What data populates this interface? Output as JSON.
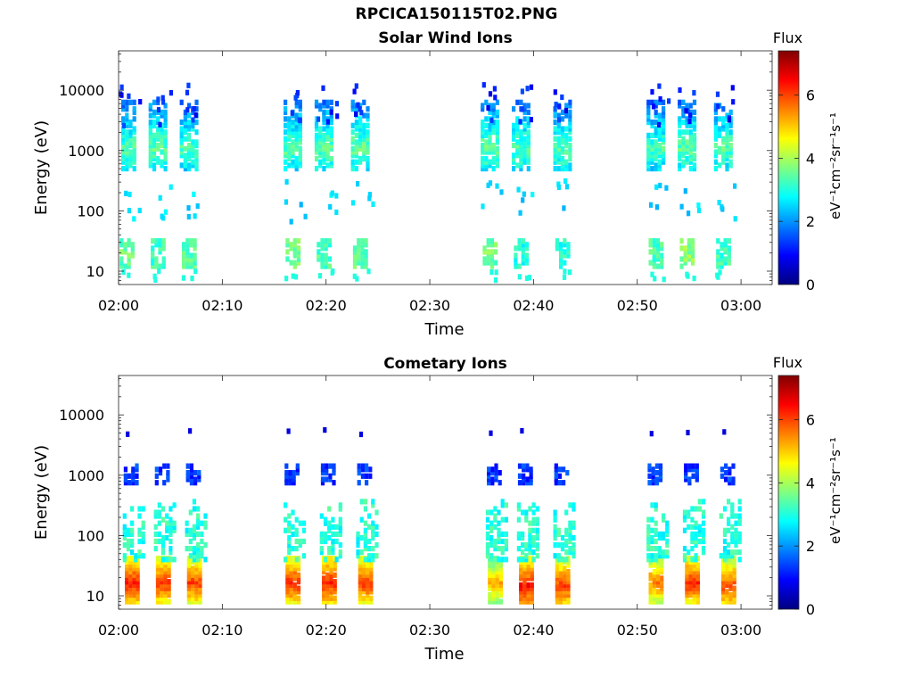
{
  "figure_title": "RPCICA150115T02.PNG",
  "chart_data": [
    {
      "type": "heatmap",
      "title": "Solar Wind Ions",
      "xlabel": "Time",
      "ylabel": "Energy (eV)",
      "xticks": [
        "02:00",
        "02:10",
        "02:20",
        "02:30",
        "02:40",
        "02:50",
        "03:00"
      ],
      "xlim_minutes": [
        0,
        63
      ],
      "yscale": "log",
      "yticks": [
        10,
        100,
        1000,
        10000
      ],
      "ylim": [
        6,
        45000
      ],
      "colorbar": {
        "label": "Flux",
        "unit_label": "eV⁻¹cm⁻²sr⁻¹s⁻¹",
        "ticks": [
          0,
          2,
          4,
          6
        ],
        "range": [
          0,
          7.4
        ],
        "colormap": "jet"
      },
      "bursts": [
        {
          "minute": 0.5,
          "peak_energy_ev": 1100,
          "peak_flux": 3.4,
          "low_energy_ev": 20,
          "low_flux": 3.5
        },
        {
          "minute": 3.5,
          "peak_energy_ev": 1100,
          "peak_flux": 3.5,
          "low_energy_ev": 20,
          "low_flux": 3.2
        },
        {
          "minute": 6.5,
          "peak_energy_ev": 1100,
          "peak_flux": 3.3,
          "low_energy_ev": 20,
          "low_flux": 3.4
        },
        {
          "minute": 16.5,
          "peak_energy_ev": 1100,
          "peak_flux": 3.4,
          "low_energy_ev": 22,
          "low_flux": 3.6
        },
        {
          "minute": 19.5,
          "peak_energy_ev": 1100,
          "peak_flux": 3.5,
          "low_energy_ev": 20,
          "low_flux": 3.3
        },
        {
          "minute": 23.0,
          "peak_energy_ev": 1100,
          "peak_flux": 3.5,
          "low_energy_ev": 20,
          "low_flux": 3.5
        },
        {
          "minute": 35.5,
          "peak_energy_ev": 1100,
          "peak_flux": 3.5,
          "low_energy_ev": 20,
          "low_flux": 3.6
        },
        {
          "minute": 38.5,
          "peak_energy_ev": 1100,
          "peak_flux": 3.4,
          "low_energy_ev": 15,
          "low_flux": 3.0
        },
        {
          "minute": 42.5,
          "peak_energy_ev": 1100,
          "peak_flux": 3.4,
          "low_energy_ev": 20,
          "low_flux": 3.0
        },
        {
          "minute": 51.5,
          "peak_energy_ev": 1100,
          "peak_flux": 3.3,
          "low_energy_ev": 20,
          "low_flux": 3.3
        },
        {
          "minute": 54.5,
          "peak_energy_ev": 1100,
          "peak_flux": 3.5,
          "low_energy_ev": 20,
          "low_flux": 3.8
        },
        {
          "minute": 58.0,
          "peak_energy_ev": 1100,
          "peak_flux": 3.4,
          "low_energy_ev": 20,
          "low_flux": 3.2
        }
      ]
    },
    {
      "type": "heatmap",
      "title": "Cometary Ions",
      "xlabel": "Time",
      "ylabel": "Energy (eV)",
      "xticks": [
        "02:00",
        "02:10",
        "02:20",
        "02:30",
        "02:40",
        "02:50",
        "03:00"
      ],
      "xlim_minutes": [
        0,
        63
      ],
      "yscale": "log",
      "yticks": [
        10,
        100,
        1000,
        10000
      ],
      "ylim": [
        6,
        45000
      ],
      "colorbar": {
        "label": "Flux",
        "unit_label": "eV⁻¹cm⁻²sr⁻¹s⁻¹",
        "ticks": [
          0,
          2,
          4,
          6
        ],
        "range": [
          0,
          7.4
        ],
        "colormap": "jet"
      },
      "bursts": [
        {
          "minute": 1.0,
          "peak_energy_ev": 17,
          "peak_flux": 6.3,
          "mid_energy_ev": 80,
          "high_energy_ev": 1100
        },
        {
          "minute": 4.0,
          "peak_energy_ev": 17,
          "peak_flux": 6.1,
          "mid_energy_ev": 80,
          "high_energy_ev": 1100
        },
        {
          "minute": 7.0,
          "peak_energy_ev": 17,
          "peak_flux": 6.0,
          "mid_energy_ev": 80,
          "high_energy_ev": 1100
        },
        {
          "minute": 16.5,
          "peak_energy_ev": 17,
          "peak_flux": 6.2,
          "mid_energy_ev": 80,
          "high_energy_ev": 1100
        },
        {
          "minute": 20.0,
          "peak_energy_ev": 17,
          "peak_flux": 6.3,
          "mid_energy_ev": 80,
          "high_energy_ev": 1100
        },
        {
          "minute": 23.5,
          "peak_energy_ev": 17,
          "peak_flux": 6.1,
          "mid_energy_ev": 80,
          "high_energy_ev": 1100
        },
        {
          "minute": 36.0,
          "peak_energy_ev": 17,
          "peak_flux": 5.2,
          "mid_energy_ev": 80,
          "high_energy_ev": 1100
        },
        {
          "minute": 39.0,
          "peak_energy_ev": 15,
          "peak_flux": 6.4,
          "mid_energy_ev": 80,
          "high_energy_ev": 1100
        },
        {
          "minute": 42.5,
          "peak_energy_ev": 15,
          "peak_flux": 6.1,
          "mid_energy_ev": 80,
          "high_energy_ev": 1100
        },
        {
          "minute": 51.5,
          "peak_energy_ev": 17,
          "peak_flux": 5.6,
          "mid_energy_ev": 80,
          "high_energy_ev": 1100
        },
        {
          "minute": 55.0,
          "peak_energy_ev": 17,
          "peak_flux": 6.2,
          "mid_energy_ev": 80,
          "high_energy_ev": 1100
        },
        {
          "minute": 58.5,
          "peak_energy_ev": 15,
          "peak_flux": 6.0,
          "mid_energy_ev": 80,
          "high_energy_ev": 1100
        }
      ]
    }
  ]
}
